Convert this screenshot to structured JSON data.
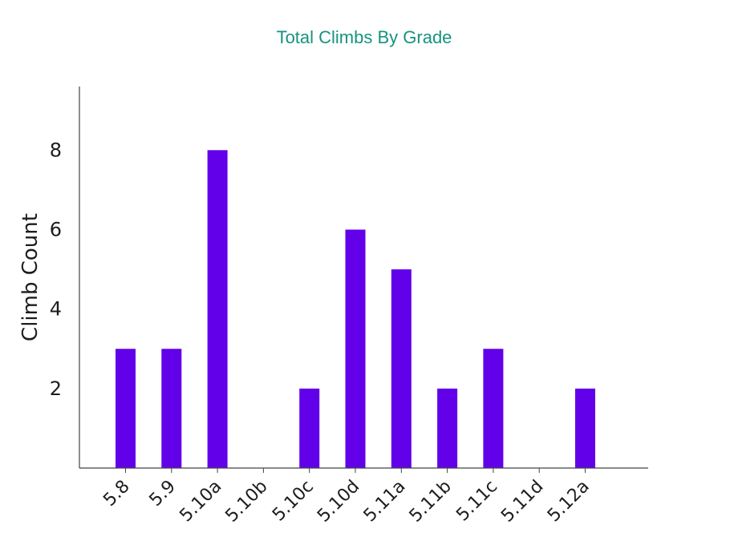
{
  "chart_data": {
    "type": "bar",
    "title": "Total Climbs By Grade",
    "xlabel": "",
    "ylabel": "Climb Count",
    "categories": [
      "5.8",
      "5.9",
      "5.10a",
      "5.10b",
      "5.10c",
      "5.10d",
      "5.11a",
      "5.11b",
      "5.11c",
      "5.11d",
      "5.12a"
    ],
    "values": [
      3,
      3,
      8,
      0,
      2,
      6,
      5,
      2,
      3,
      0,
      2
    ],
    "yticks": [
      2,
      4,
      6,
      8
    ],
    "ylim": [
      0,
      9.6
    ],
    "bar_color": "#6200ea",
    "title_color": "#16937f",
    "grid": false,
    "legend": "none"
  }
}
